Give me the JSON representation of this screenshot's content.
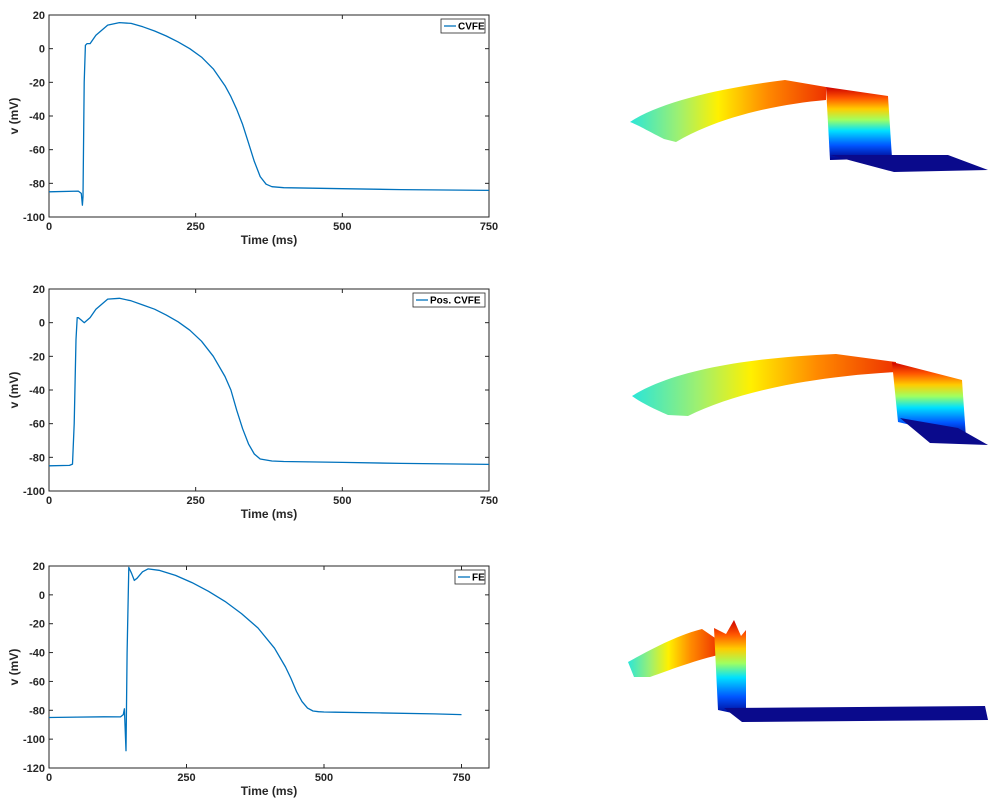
{
  "colors": {
    "line": "#0072BD",
    "axis": "#262626",
    "frame": "#000000"
  },
  "chart_data": [
    {
      "type": "line",
      "xlabel": "Time (ms)",
      "ylabel": "v (mV)",
      "xlim": [
        0,
        750
      ],
      "ylim": [
        -100,
        20
      ],
      "xticks": [
        0,
        250,
        500,
        750
      ],
      "yticks": [
        -100,
        -80,
        -60,
        -40,
        -20,
        0,
        20
      ],
      "legend_position": "top-right",
      "series": [
        {
          "name": "CVFE",
          "x": [
            0,
            50,
            55,
            57,
            58,
            60,
            62,
            65,
            70,
            80,
            100,
            120,
            140,
            160,
            180,
            200,
            220,
            240,
            260,
            280,
            300,
            310,
            320,
            330,
            340,
            350,
            360,
            370,
            380,
            400,
            500,
            600,
            750
          ],
          "y": [
            -85,
            -84.6,
            -86,
            -93,
            -88,
            -20,
            2,
            3,
            3,
            8,
            14,
            15.5,
            15,
            13,
            10.5,
            7.5,
            4,
            0,
            -5,
            -12,
            -22,
            -28.5,
            -36,
            -45,
            -56,
            -67,
            -76,
            -80.5,
            -82,
            -82.6,
            -83.2,
            -83.7,
            -84.2
          ]
        }
      ]
    },
    {
      "type": "line",
      "xlabel": "Time (ms)",
      "ylabel": "v (mV)",
      "xlim": [
        0,
        750
      ],
      "ylim": [
        -100,
        20
      ],
      "xticks": [
        0,
        250,
        500,
        750
      ],
      "yticks": [
        -100,
        -80,
        -60,
        -40,
        -20,
        0,
        20
      ],
      "legend_position": "top-right",
      "series": [
        {
          "name": "Pos. CVFE",
          "x": [
            0,
            35,
            40,
            43,
            46,
            48,
            50,
            55,
            60,
            70,
            80,
            100,
            120,
            140,
            160,
            180,
            200,
            220,
            240,
            260,
            280,
            300,
            310,
            320,
            330,
            340,
            350,
            360,
            380,
            400,
            500,
            600,
            750
          ],
          "y": [
            -85,
            -84.8,
            -84,
            -60,
            -10,
            3,
            3,
            1.5,
            0,
            3,
            8,
            14,
            14.5,
            13,
            10.5,
            8,
            4.5,
            0.5,
            -4.5,
            -11,
            -20,
            -32,
            -40,
            -52,
            -63,
            -72,
            -78,
            -81,
            -82.2,
            -82.5,
            -83,
            -83.6,
            -84.2
          ]
        }
      ]
    },
    {
      "type": "line",
      "xlabel": "Time (ms)",
      "ylabel": "v (mV)",
      "xlim": [
        0,
        800
      ],
      "ylim": [
        -120,
        20
      ],
      "xticks": [
        0,
        250,
        500,
        750
      ],
      "yticks": [
        -120,
        -100,
        -80,
        -60,
        -40,
        -20,
        0,
        20
      ],
      "legend_position": "top-right",
      "series": [
        {
          "name": "FE",
          "x": [
            0,
            50,
            100,
            130,
            135,
            137,
            140,
            142,
            145,
            150,
            155,
            160,
            170,
            180,
            200,
            230,
            260,
            290,
            320,
            350,
            380,
            410,
            430,
            440,
            450,
            460,
            470,
            480,
            490,
            500,
            520,
            600,
            700,
            750
          ],
          "y": [
            -85,
            -84.7,
            -84.5,
            -84.6,
            -83,
            -79,
            -108,
            -40,
            19,
            15,
            10,
            11.5,
            16,
            18,
            17,
            13.5,
            8.5,
            2.5,
            -4.5,
            -13,
            -23,
            -37,
            -50,
            -58,
            -67,
            -74,
            -78.5,
            -80.5,
            -81,
            -81.2,
            -81.3,
            -81.8,
            -82.5,
            -83
          ]
        }
      ]
    }
  ]
}
